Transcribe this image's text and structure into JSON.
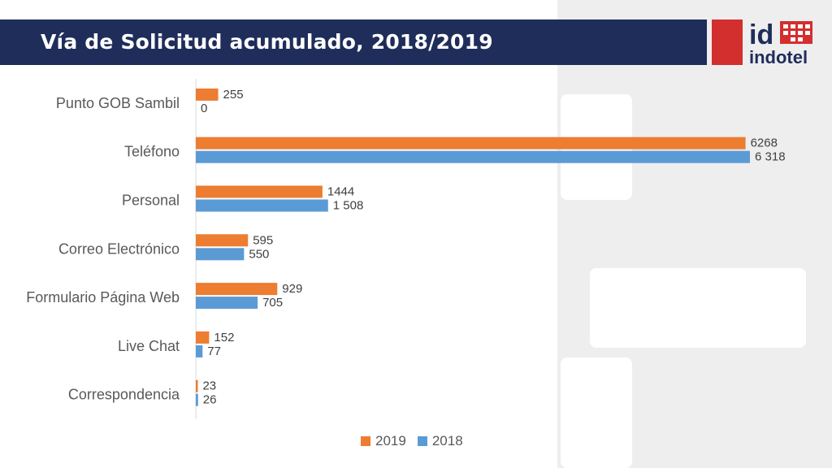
{
  "header": {
    "title": "Vía de Solicitud acumulado, 2018/2019"
  },
  "logo": {
    "mark": "id",
    "name": "indotel",
    "icon": "indotel-logo"
  },
  "colors": {
    "s2019": "#ed7d31",
    "s2018": "#5b9bd5",
    "header_bg": "#1f2d5a",
    "brand_red": "#d32f2f"
  },
  "chart_data": {
    "type": "bar",
    "orientation": "horizontal",
    "title": "",
    "xlabel": "",
    "ylabel": "",
    "categories": [
      "Punto GOB Sambil",
      "Teléfono",
      "Personal",
      "Correo Electrónico",
      "Formulario Página Web",
      "Live Chat",
      "Correspondencia"
    ],
    "series": [
      {
        "name": "2019",
        "color": "#ed7d31",
        "values": [
          255,
          6268,
          1444,
          595,
          929,
          152,
          23
        ],
        "labels": [
          "255",
          "6268",
          "1444",
          "595",
          "929",
          "152",
          "23"
        ]
      },
      {
        "name": "2018",
        "color": "#5b9bd5",
        "values": [
          0,
          6318,
          1508,
          550,
          705,
          77,
          26
        ],
        "labels": [
          "0",
          "6 318",
          "1 508",
          "550",
          "705",
          "77",
          "26"
        ]
      }
    ],
    "xlim": [
      0,
      6318
    ],
    "grid": false,
    "legend": "bottom"
  },
  "legend": {
    "items": [
      "2019",
      "2018"
    ]
  }
}
